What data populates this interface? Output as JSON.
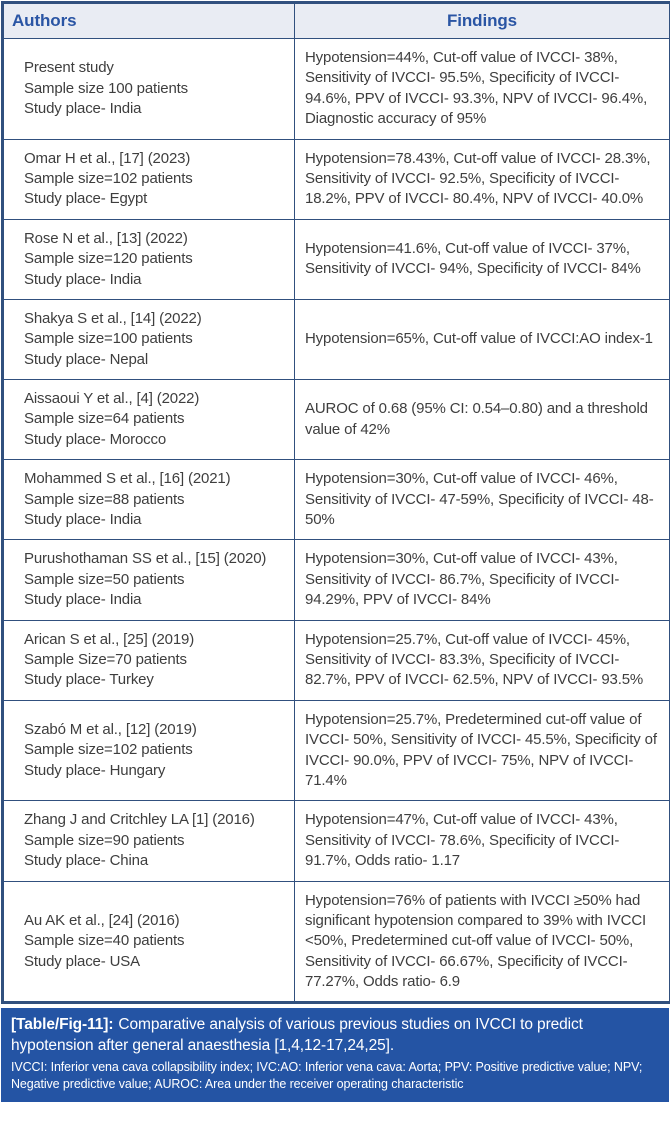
{
  "colors": {
    "border_navy": "#31507e",
    "header_bg": "#e9ecf3",
    "header_text_blue": "#2a55a4",
    "body_text": "#3e3e3e",
    "caption_bg": "#2454a4",
    "caption_text": "#ffffff"
  },
  "table": {
    "columns": [
      "Authors",
      "Findings"
    ],
    "rows": [
      {
        "authors": [
          "Present study",
          "Sample size 100 patients",
          "Study place- India"
        ],
        "findings": "Hypotension=44%, Cut-off value of IVCCI- 38%, Sensitivity of IVCCI- 95.5%, Specificity of IVCCI- 94.6%, PPV of IVCCI- 93.3%, NPV of IVCCI- 96.4%, Diagnostic accuracy of 95%"
      },
      {
        "authors": [
          "Omar H et al., [17] (2023)",
          "Sample size=102 patients",
          "Study place- Egypt"
        ],
        "findings": "Hypotension=78.43%, Cut-off value of IVCCI- 28.3%, Sensitivity of IVCCI- 92.5%, Specificity of IVCCI- 18.2%, PPV of IVCCI- 80.4%, NPV of IVCCI- 40.0%"
      },
      {
        "authors": [
          "Rose N et al., [13] (2022)",
          "Sample size=120 patients",
          "Study place- India"
        ],
        "findings": "Hypotension=41.6%, Cut-off value of IVCCI- 37%, Sensitivity of IVCCI- 94%, Specificity of IVCCI- 84%"
      },
      {
        "authors": [
          "Shakya S et al., [14] (2022)",
          "Sample size=100 patients",
          "Study place- Nepal"
        ],
        "findings": "Hypotension=65%, Cut-off value of IVCCI:AO index-1"
      },
      {
        "authors": [
          "Aissaoui Y et al., [4] (2022)",
          "Sample size=64 patients",
          "Study place- Morocco"
        ],
        "findings": "AUROC of 0.68 (95% CI: 0.54–0.80) and a threshold value of 42%"
      },
      {
        "authors": [
          "Mohammed S et al., [16] (2021)",
          "Sample size=88 patients",
          "Study place- India"
        ],
        "findings": "Hypotension=30%, Cut-off value of IVCCI- 46%, Sensitivity of IVCCI- 47-59%, Specificity of IVCCI- 48-50%"
      },
      {
        "authors": [
          "Purushothaman SS et al., [15] (2020)",
          "Sample size=50 patients",
          "Study place- India"
        ],
        "findings": "Hypotension=30%, Cut-off value of IVCCI- 43%, Sensitivity of IVCCI- 86.7%, Specificity of IVCCI- 94.29%, PPV of IVCCI- 84%"
      },
      {
        "authors": [
          "Arican S et al., [25] (2019)",
          "Sample Size=70 patients",
          "Study place- Turkey"
        ],
        "findings": "Hypotension=25.7%, Cut-off value of IVCCI- 45%, Sensitivity of IVCCI- 83.3%, Specificity of IVCCI- 82.7%, PPV of IVCCI- 62.5%, NPV of IVCCI- 93.5%"
      },
      {
        "authors": [
          "Szabó M et al., [12] (2019)",
          "Sample size=102 patients",
          "Study place- Hungary"
        ],
        "findings": "Hypotension=25.7%, Predetermined cut-off value of IVCCI- 50%, Sensitivity of IVCCI- 45.5%, Specificity of IVCCI- 90.0%, PPV of IVCCI- 75%, NPV of IVCCI- 71.4%"
      },
      {
        "authors": [
          "Zhang J and Critchley LA [1] (2016)",
          "Sample size=90 patients",
          "Study place- China"
        ],
        "findings": "Hypotension=47%, Cut-off value of IVCCI- 43%, Sensitivity of IVCCI- 78.6%, Specificity of IVCCI- 91.7%, Odds ratio- 1.17"
      },
      {
        "authors": [
          "Au AK et al., [24] (2016)",
          "Sample size=40 patients",
          "Study place- USA"
        ],
        "findings": "Hypotension=76% of patients with IVCCI ≥50% had significant hypotension compared to 39% with IVCCI <50%, Predetermined cut-off value of IVCCI- 50%, Sensitivity of IVCCI- 66.67%, Specificity of IVCCI- 77.27%, Odds ratio- 6.9"
      }
    ]
  },
  "caption": {
    "label": "[Table/Fig-11]:",
    "text": "Comparative analysis of various previous studies on IVCCI to predict hypotension after general anaesthesia [1,4,12-17,24,25].",
    "footnote": "IVCCI: Inferior vena cava collapsibility index; IVC:AO: Inferior vena cava: Aorta; PPV: Positive predictive value; NPV; Negative predictive value; AUROC: Area under the receiver operating characteristic"
  }
}
